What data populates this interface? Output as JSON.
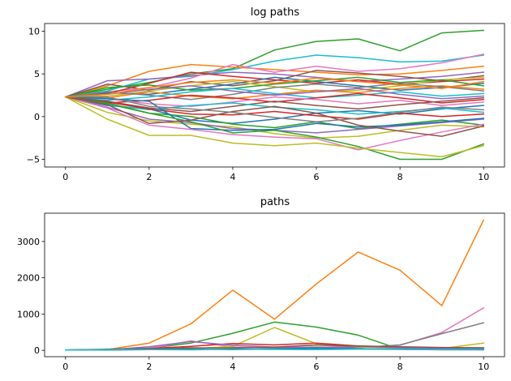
{
  "figure": {
    "background": "#ffffff"
  },
  "chart_data": [
    {
      "type": "line",
      "title": "log paths",
      "xlabel": "",
      "ylabel": "",
      "xlim": [
        -0.5,
        10.5
      ],
      "ylim": [
        -5.9,
        10.9
      ],
      "xticks": [
        0,
        2,
        4,
        6,
        8,
        10
      ],
      "yticks": [
        -5,
        0,
        5,
        10
      ],
      "grid": false,
      "legend": "none",
      "x": [
        0,
        1,
        2,
        3,
        4,
        5,
        6,
        7,
        8,
        9,
        10
      ],
      "series": [
        {
          "color": "#2ca02c",
          "values": [
            2.3,
            3.2,
            4.0,
            5.0,
            5.6,
            7.8,
            8.8,
            9.1,
            7.7,
            9.8,
            10.1
          ]
        },
        {
          "color": "#17becf",
          "values": [
            2.3,
            3.0,
            4.4,
            4.7,
            5.5,
            6.5,
            7.2,
            6.9,
            6.4,
            6.5,
            7.2
          ]
        },
        {
          "color": "#ff7f0e",
          "values": [
            2.3,
            3.6,
            5.3,
            6.1,
            5.8,
            5.5,
            5.2,
            4.9,
            5.0,
            5.4,
            5.9
          ]
        },
        {
          "color": "#9467bd",
          "values": [
            2.3,
            4.2,
            4.4,
            4.8,
            5.2,
            5.0,
            4.6,
            4.1,
            4.4,
            4.7,
            5.2
          ]
        },
        {
          "color": "#8c564b",
          "values": [
            2.3,
            3.8,
            3.1,
            4.1,
            3.6,
            4.2,
            5.4,
            5.1,
            4.7,
            4.2,
            4.8
          ]
        },
        {
          "color": "#e377c2",
          "values": [
            2.3,
            2.9,
            3.4,
            4.5,
            6.1,
            5.2,
            5.9,
            5.3,
            5.6,
            6.3,
            7.3
          ]
        },
        {
          "color": "#d62728",
          "values": [
            2.3,
            2.7,
            3.9,
            5.2,
            4.7,
            4.3,
            3.9,
            4.3,
            3.8,
            4.1,
            4.4
          ]
        },
        {
          "color": "#bcbd22",
          "values": [
            2.3,
            2.4,
            3.0,
            3.6,
            4.1,
            3.5,
            2.9,
            3.1,
            3.6,
            4.3,
            4.6
          ]
        },
        {
          "color": "#1f77b4",
          "values": [
            2.3,
            2.8,
            2.6,
            3.2,
            3.8,
            4.6,
            4.1,
            3.6,
            3.1,
            3.4,
            3.9
          ]
        },
        {
          "color": "#2ca02c",
          "values": [
            2.3,
            3.4,
            3.7,
            3.1,
            3.3,
            3.8,
            4.2,
            4.6,
            4.0,
            4.3,
            3.6
          ]
        },
        {
          "color": "#ff7f0e",
          "values": [
            2.3,
            2.2,
            2.9,
            2.4,
            2.1,
            2.6,
            3.1,
            2.8,
            3.3,
            3.6,
            3.2
          ]
        },
        {
          "color": "#7f7f7f",
          "values": [
            2.3,
            2.9,
            2.5,
            2.0,
            2.6,
            3.4,
            3.8,
            3.4,
            3.9,
            3.5,
            3.0
          ]
        },
        {
          "color": "#17becf",
          "values": [
            2.3,
            1.9,
            2.3,
            2.9,
            3.3,
            2.7,
            2.2,
            2.5,
            2.9,
            2.4,
            2.7
          ]
        },
        {
          "color": "#9467bd",
          "values": [
            2.3,
            2.6,
            3.2,
            3.6,
            3.0,
            2.5,
            2.9,
            3.3,
            2.6,
            2.1,
            2.4
          ]
        },
        {
          "color": "#d62728",
          "values": [
            2.3,
            1.6,
            1.9,
            2.5,
            2.2,
            1.7,
            2.2,
            2.7,
            2.2,
            1.6,
            2.0
          ]
        },
        {
          "color": "#e377c2",
          "values": [
            2.3,
            2.1,
            1.5,
            1.2,
            1.7,
            2.3,
            2.0,
            1.5,
            1.9,
            1.3,
            1.7
          ]
        },
        {
          "color": "#1f77b4",
          "values": [
            2.3,
            1.3,
            0.9,
            -0.4,
            -0.8,
            -0.3,
            0.4,
            0.7,
            0.3,
            0.9,
            1.3
          ]
        },
        {
          "color": "#8c564b",
          "values": [
            2.3,
            1.8,
            1.0,
            0.6,
            1.2,
            1.8,
            1.3,
            0.9,
            1.4,
            1.8,
            2.2
          ]
        },
        {
          "color": "#2ca02c",
          "values": [
            2.3,
            1.5,
            0.4,
            0.0,
            -0.9,
            -1.3,
            -0.6,
            -1.4,
            -0.9,
            -0.4,
            -1.0
          ]
        },
        {
          "color": "#17becf",
          "values": [
            2.3,
            1.4,
            0.8,
            1.3,
            1.6,
            1.1,
            0.8,
            0.3,
            0.6,
            1.0,
            0.5
          ]
        },
        {
          "color": "#bcbd22",
          "values": [
            2.3,
            0.5,
            -0.5,
            -0.9,
            -1.2,
            -2.0,
            -2.5,
            -2.3,
            -1.6,
            -1.0,
            -1.2
          ]
        },
        {
          "color": "#9467bd",
          "values": [
            2.3,
            1.1,
            -0.3,
            -0.7,
            -1.4,
            -1.6,
            -1.9,
            -1.5,
            -1.1,
            -0.7,
            -0.3
          ]
        },
        {
          "color": "#d62728",
          "values": [
            2.3,
            1.7,
            0.9,
            0.3,
            0.2,
            0.6,
            0.1,
            -0.3,
            0.4,
            0.0,
            0.3
          ]
        },
        {
          "color": "#1f77b4",
          "values": [
            2.3,
            2.1,
            1.8,
            -1.4,
            -1.6,
            -1.5,
            -0.8,
            -1.2,
            -1.0,
            -0.6,
            -0.2
          ]
        },
        {
          "color": "#e377c2",
          "values": [
            2.3,
            1.0,
            -1.0,
            -1.5,
            -2.1,
            -2.4,
            -2.6,
            -3.9,
            -2.8,
            -1.8,
            -0.9
          ]
        },
        {
          "color": "#2ca02c",
          "values": [
            2.3,
            1.6,
            0.4,
            -0.6,
            -1.9,
            -1.6,
            -2.4,
            -3.5,
            -5.0,
            -5.0,
            -3.2
          ]
        },
        {
          "color": "#bcbd22",
          "values": [
            2.3,
            -0.3,
            -2.2,
            -2.2,
            -3.1,
            -3.4,
            -3.1,
            -3.7,
            -4.2,
            -4.7,
            -3.4
          ]
        },
        {
          "color": "#8c564b",
          "values": [
            2.3,
            1.4,
            -0.8,
            -0.4,
            0.6,
            1.2,
            0.4,
            -1.0,
            -1.7,
            -2.3,
            -1.1
          ]
        },
        {
          "color": "#7f7f7f",
          "values": [
            2.3,
            2.3,
            1.2,
            0.9,
            0.5,
            -0.1,
            -0.6,
            -0.2,
            0.5,
            1.1,
            0.8
          ]
        },
        {
          "color": "#ff7f0e",
          "values": [
            2.3,
            2.6,
            3.4,
            4.0,
            4.3,
            3.9,
            4.5,
            4.1,
            3.7,
            3.3,
            4.1
          ]
        }
      ]
    },
    {
      "type": "line",
      "title": "paths",
      "xlabel": "",
      "ylabel": "",
      "xlim": [
        -0.5,
        10.5
      ],
      "ylim": [
        -175,
        3780
      ],
      "xticks": [
        0,
        2,
        4,
        6,
        8,
        10
      ],
      "yticks": [
        0,
        1000,
        2000,
        3000
      ],
      "grid": false,
      "legend": "none",
      "x": [
        0,
        1,
        2,
        3,
        4,
        5,
        6,
        7,
        8,
        9,
        10
      ],
      "series": [
        {
          "color": "#ff7f0e",
          "values": [
            10,
            20,
            200,
            730,
            1660,
            860,
            1830,
            2710,
            2210,
            1230,
            3590
          ]
        },
        {
          "color": "#2ca02c",
          "values": [
            10,
            30,
            60,
            200,
            470,
            780,
            640,
            420,
            30,
            15,
            20
          ]
        },
        {
          "color": "#e377c2",
          "values": [
            10,
            20,
            50,
            260,
            90,
            70,
            150,
            80,
            140,
            490,
            1170
          ]
        },
        {
          "color": "#7f7f7f",
          "values": [
            10,
            15,
            30,
            60,
            80,
            70,
            90,
            70,
            150,
            460,
            760
          ]
        },
        {
          "color": "#bcbd22",
          "values": [
            10,
            10,
            30,
            40,
            110,
            630,
            180,
            90,
            60,
            50,
            200
          ]
        },
        {
          "color": "#d62728",
          "values": [
            10,
            20,
            50,
            110,
            190,
            150,
            200,
            120,
            80,
            60,
            40
          ]
        },
        {
          "color": "#9467bd",
          "values": [
            10,
            15,
            100,
            240,
            140,
            90,
            60,
            110,
            70,
            40,
            60
          ]
        },
        {
          "color": "#8c564b",
          "values": [
            10,
            20,
            40,
            70,
            60,
            90,
            150,
            120,
            100,
            80,
            70
          ]
        },
        {
          "color": "#1f77b4",
          "values": [
            10,
            10,
            20,
            30,
            20,
            40,
            60,
            40,
            30,
            20,
            15
          ]
        },
        {
          "color": "#17becf",
          "values": [
            10,
            15,
            20,
            15,
            30,
            25,
            20,
            30,
            25,
            20,
            25
          ]
        }
      ]
    }
  ]
}
